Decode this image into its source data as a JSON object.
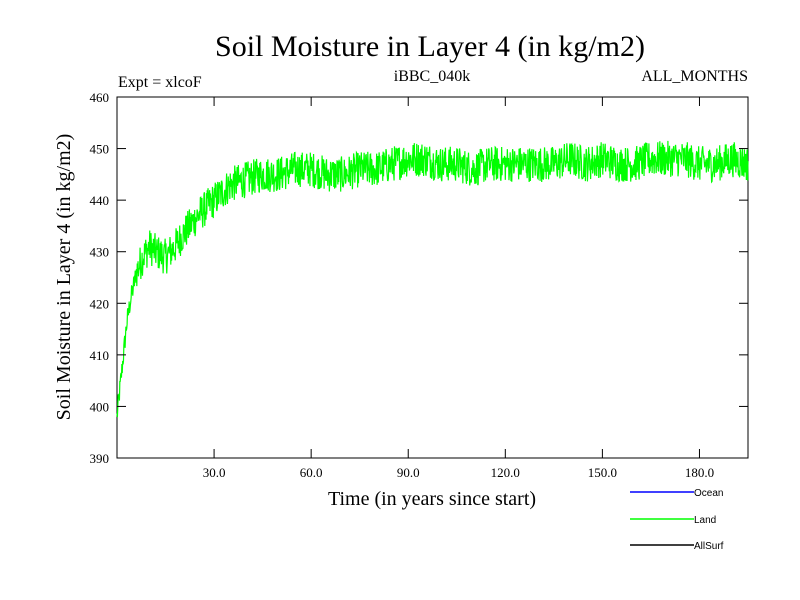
{
  "chart_data": {
    "type": "line",
    "title": "Soil Moisture in Layer 4 (in kg/m2)",
    "subtitle_left": "Expt = xlcoF",
    "subtitle_center": "iBBC_040k",
    "subtitle_right": "ALL_MONTHS",
    "xlabel": "Time (in years since start)",
    "ylabel": "Soil Moisture in Layer 4 (in kg/m2)",
    "xlim": [
      0,
      195
    ],
    "ylim": [
      390,
      460
    ],
    "x_ticks": [
      30,
      60,
      90,
      120,
      150,
      180
    ],
    "x_tick_labels": [
      "30.0",
      "60.0",
      "90.0",
      "120.0",
      "150.0",
      "180.0"
    ],
    "y_ticks": [
      390,
      400,
      410,
      420,
      430,
      440,
      450,
      460
    ],
    "y_tick_labels": [
      "390",
      "400",
      "410",
      "420",
      "430",
      "440",
      "450",
      "460"
    ],
    "series": [
      {
        "name": "Land",
        "color": "#00ff00",
        "x": [
          0,
          1,
          2,
          3,
          4,
          5,
          6,
          8,
          10,
          12,
          15,
          18,
          20,
          25,
          30,
          35,
          40,
          45,
          50,
          55,
          60,
          65,
          70,
          75,
          80,
          85,
          90,
          95,
          100,
          105,
          110,
          115,
          120,
          125,
          130,
          135,
          140,
          145,
          150,
          155,
          160,
          165,
          170,
          175,
          180,
          185,
          190,
          195
        ],
        "values": [
          398,
          404,
          410,
          416,
          420,
          423,
          426,
          429,
          431,
          430,
          429,
          431,
          433,
          437,
          440,
          443,
          444,
          445,
          445,
          446,
          446,
          445,
          445,
          446,
          446,
          447,
          448,
          448,
          447,
          447,
          446,
          447,
          447,
          447,
          447,
          447,
          448,
          447,
          448,
          447,
          447,
          448,
          448,
          448,
          447,
          447,
          448,
          447
        ],
        "noise_amplitude": 3.5
      }
    ],
    "legend": {
      "placement": "bottom-right",
      "entries": [
        {
          "label": "Ocean",
          "color": "#0000ff"
        },
        {
          "label": "Land",
          "color": "#00ff00"
        },
        {
          "label": "AllSurf",
          "color": "#000000"
        }
      ]
    }
  }
}
